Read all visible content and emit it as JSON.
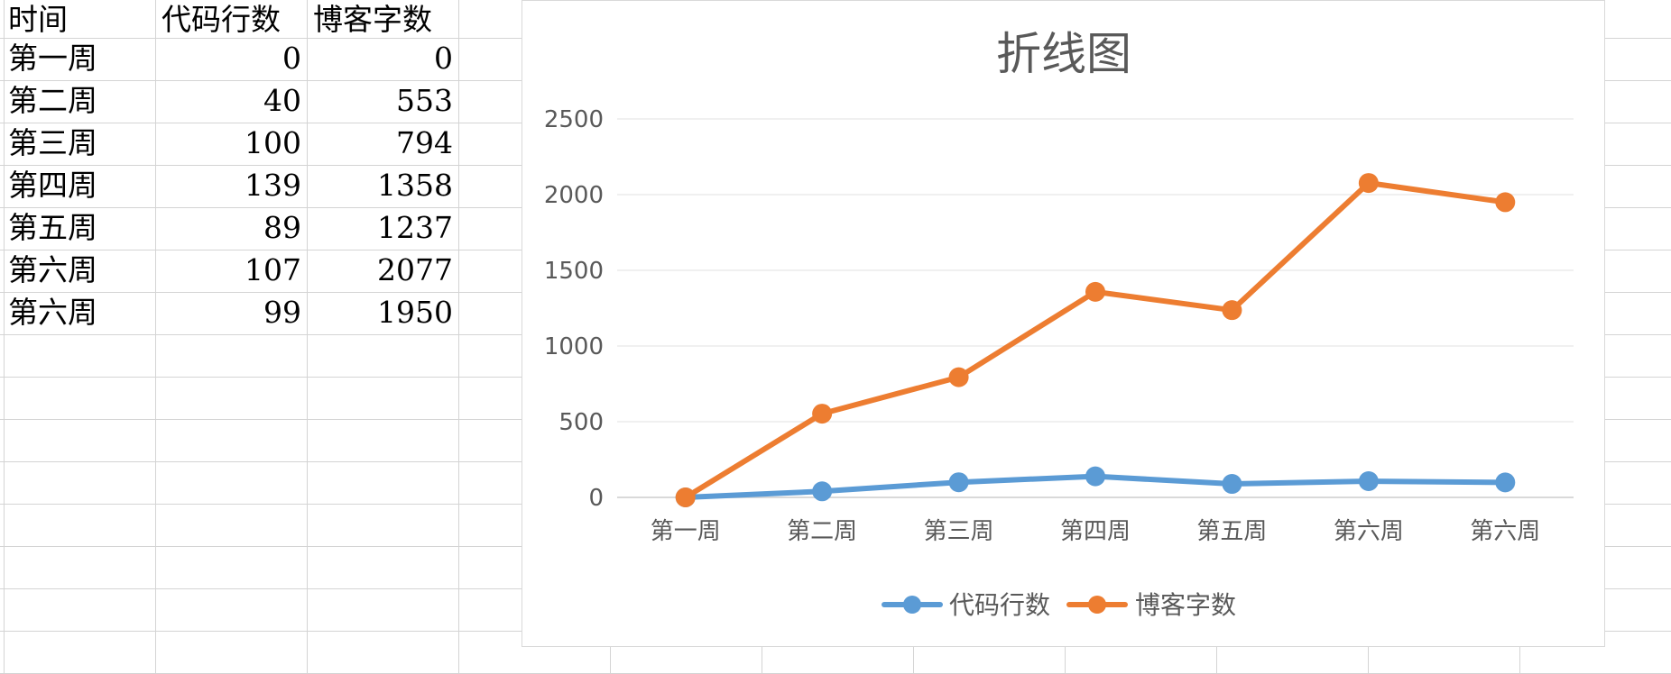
{
  "sheet": {
    "headers": [
      "时间",
      "代码行数",
      "博客字数"
    ],
    "rows": [
      [
        "第一周",
        "0",
        "0"
      ],
      [
        "第二周",
        "40",
        "553"
      ],
      [
        "第三周",
        "100",
        "794"
      ],
      [
        "第四周",
        "139",
        "1358"
      ],
      [
        "第五周",
        "89",
        "1237"
      ],
      [
        "第六周",
        "107",
        "2077"
      ],
      [
        "第六周",
        "99",
        "1950"
      ]
    ]
  },
  "chart_data": {
    "type": "line",
    "title": "折线图",
    "xlabel": "",
    "ylabel": "",
    "categories": [
      "第一周",
      "第二周",
      "第三周",
      "第四周",
      "第五周",
      "第六周",
      "第六周"
    ],
    "series": [
      {
        "name": "代码行数",
        "color": "#5b9bd5",
        "values": [
          0,
          40,
          100,
          139,
          89,
          107,
          99
        ]
      },
      {
        "name": "博客字数",
        "color": "#ed7d31",
        "values": [
          0,
          553,
          794,
          1358,
          1237,
          2077,
          1950
        ]
      }
    ],
    "ylim": [
      0,
      2500
    ],
    "yticks": [
      0,
      500,
      1000,
      1500,
      2000,
      2500
    ],
    "grid": true,
    "legend": "bottom"
  }
}
